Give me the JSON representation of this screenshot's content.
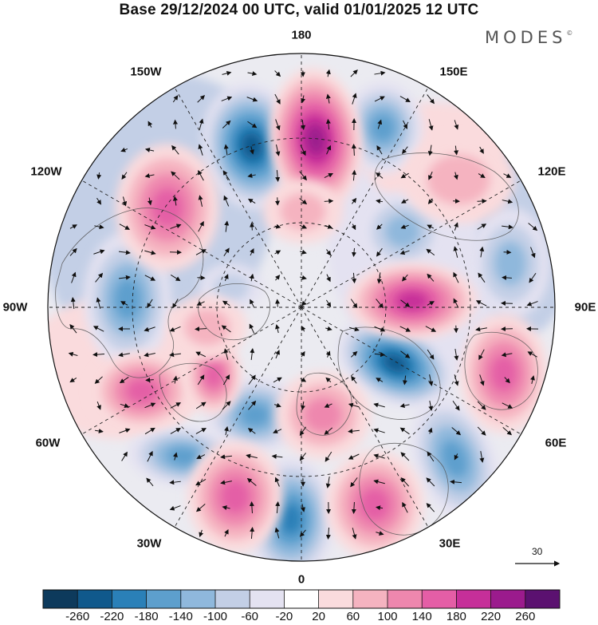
{
  "title": "Base 29/12/2024 00 UTC, valid 01/01/2025 12 UTC",
  "brand": "MODES",
  "brand_mark": "©",
  "longitude_labels": {
    "top": "180",
    "bottom": "0",
    "left": "90W",
    "right": "90E",
    "upper_left_1": "150W",
    "upper_left_2": "120W",
    "upper_right_1": "150E",
    "upper_right_2": "120E",
    "lower_left_1": "60W",
    "lower_left_2": "30W",
    "lower_right_1": "60E",
    "lower_right_2": "30E"
  },
  "vector_reference": {
    "label": "30",
    "value": 30
  },
  "colorbar": {
    "labels": [
      "-260",
      "-220",
      "-180",
      "-140",
      "-100",
      "-60",
      "-20",
      "20",
      "60",
      "100",
      "140",
      "180",
      "220",
      "260"
    ],
    "colors": [
      "#0d3a5c",
      "#10598c",
      "#2a80b8",
      "#5d9fcd",
      "#8fb8dc",
      "#c3cfe6",
      "#e4e2f1",
      "#ffffff",
      "#fadbdd",
      "#f5b3c0",
      "#ee87ae",
      "#e45ea6",
      "#c62f99",
      "#9b1b8d",
      "#5b1170"
    ]
  },
  "colors": {
    "coast": "#555555",
    "grid": "#222222",
    "contour": "#111111",
    "land_fill": "#f0f0f0"
  }
}
